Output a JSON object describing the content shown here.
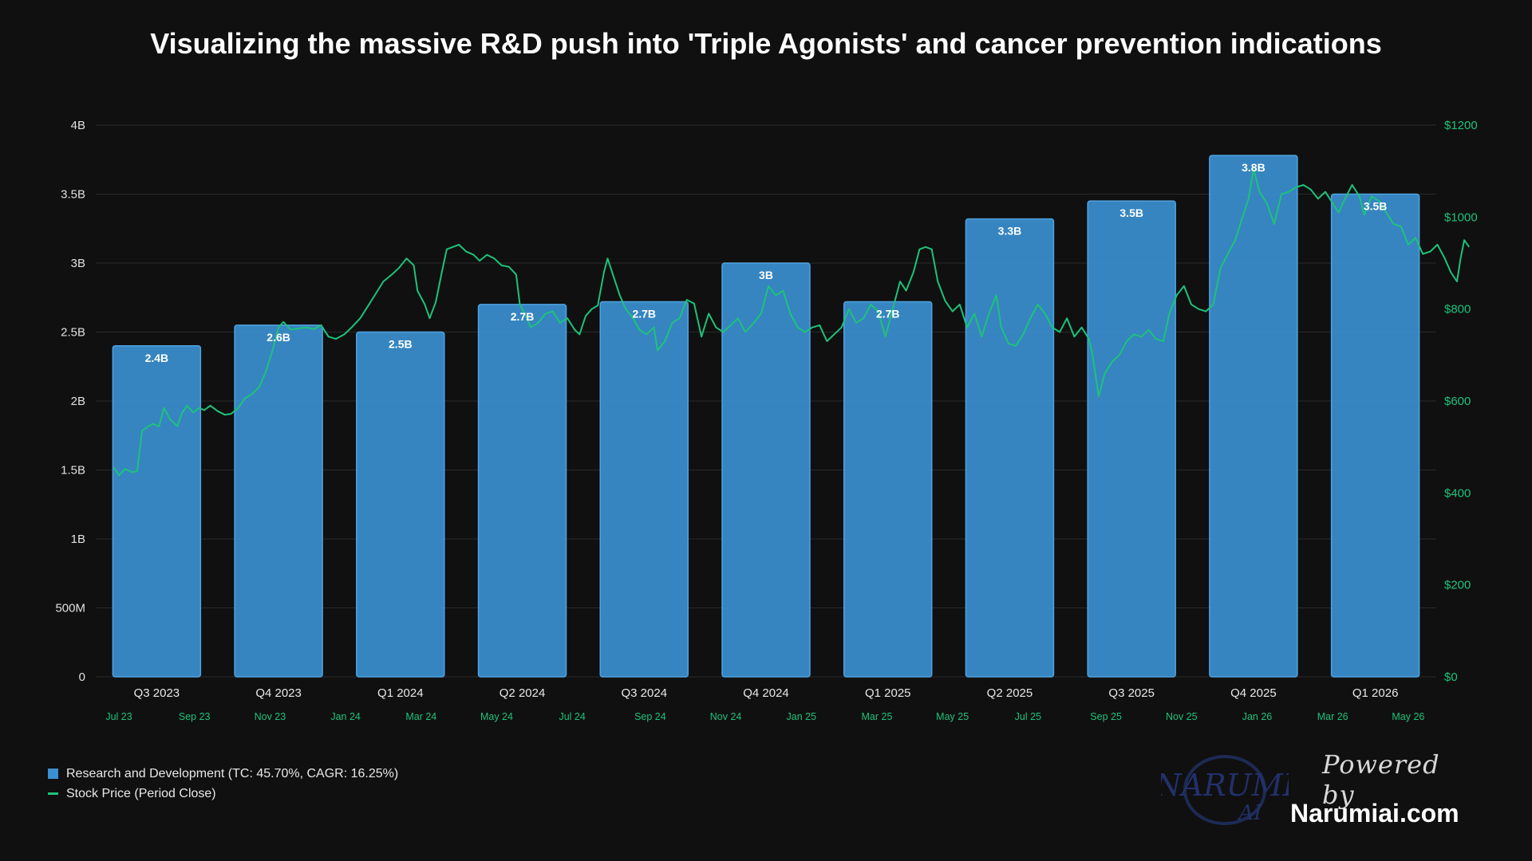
{
  "chart_data": {
    "type": "bar+line",
    "title": "Visualizing the massive R&D push into 'Triple Agonists' and cancer prevention indications",
    "categories": [
      "Q3 2023",
      "Q4 2023",
      "Q1 2024",
      "Q2 2024",
      "Q3 2024",
      "Q4 2024",
      "Q1 2025",
      "Q2 2025",
      "Q3 2025",
      "Q4 2025",
      "Q1 2026"
    ],
    "series": [
      {
        "name": "Research and Development (TC: 45.70%, CAGR: 16.25%)",
        "type": "bar",
        "axis": "left",
        "color": "#3a8fd0",
        "values": [
          2.4,
          2.55,
          2.5,
          2.7,
          2.72,
          3.0,
          2.72,
          3.32,
          3.45,
          3.78,
          3.5
        ],
        "labels": [
          "2.4B",
          "2.6B",
          "2.5B",
          "2.7B",
          "2.7B",
          "3B",
          "2.7B",
          "3.3B",
          "3.5B",
          "3.8B",
          "3.5B"
        ]
      },
      {
        "name": "Stock Price (Period Close)",
        "type": "line",
        "axis": "right",
        "color": "#1ec27a",
        "points": [
          [
            0,
            455
          ],
          [
            0.04,
            438
          ],
          [
            0.09,
            452
          ],
          [
            0.15,
            445
          ],
          [
            0.19,
            448
          ],
          [
            0.23,
            535
          ],
          [
            0.28,
            545
          ],
          [
            0.32,
            550
          ],
          [
            0.37,
            545
          ],
          [
            0.41,
            585
          ],
          [
            0.46,
            560
          ],
          [
            0.52,
            545
          ],
          [
            0.56,
            575
          ],
          [
            0.6,
            590
          ],
          [
            0.65,
            575
          ],
          [
            0.7,
            585
          ],
          [
            0.74,
            580
          ],
          [
            0.79,
            590
          ],
          [
            0.85,
            578
          ],
          [
            0.91,
            570
          ],
          [
            0.96,
            572
          ],
          [
            1.02,
            585
          ],
          [
            1.07,
            605
          ],
          [
            1.13,
            615
          ],
          [
            1.19,
            630
          ],
          [
            1.24,
            660
          ],
          [
            1.3,
            710
          ],
          [
            1.35,
            760
          ],
          [
            1.39,
            772
          ],
          [
            1.45,
            755
          ],
          [
            1.52,
            758
          ],
          [
            1.58,
            760
          ],
          [
            1.64,
            756
          ],
          [
            1.7,
            765
          ],
          [
            1.76,
            740
          ],
          [
            1.82,
            735
          ],
          [
            1.89,
            745
          ],
          [
            1.95,
            760
          ],
          [
            2.02,
            780
          ],
          [
            2.08,
            805
          ],
          [
            2.14,
            830
          ],
          [
            2.21,
            860
          ],
          [
            2.28,
            875
          ],
          [
            2.34,
            890
          ],
          [
            2.4,
            910
          ],
          [
            2.46,
            895
          ],
          [
            2.49,
            840
          ],
          [
            2.55,
            810
          ],
          [
            2.59,
            780
          ],
          [
            2.64,
            815
          ],
          [
            2.69,
            880
          ],
          [
            2.73,
            930
          ],
          [
            2.78,
            935
          ],
          [
            2.83,
            940
          ],
          [
            2.89,
            925
          ],
          [
            2.95,
            918
          ],
          [
            3.0,
            905
          ],
          [
            3.06,
            918
          ],
          [
            3.12,
            910
          ],
          [
            3.18,
            895
          ],
          [
            3.24,
            892
          ],
          [
            3.3,
            875
          ],
          [
            3.33,
            810
          ],
          [
            3.37,
            790
          ],
          [
            3.42,
            760
          ],
          [
            3.48,
            770
          ],
          [
            3.54,
            790
          ],
          [
            3.6,
            795
          ],
          [
            3.66,
            770
          ],
          [
            3.72,
            780
          ],
          [
            3.78,
            755
          ],
          [
            3.82,
            745
          ],
          [
            3.87,
            785
          ],
          [
            3.92,
            800
          ],
          [
            3.97,
            808
          ],
          [
            4.02,
            880
          ],
          [
            4.05,
            910
          ],
          [
            4.1,
            870
          ],
          [
            4.15,
            830
          ],
          [
            4.2,
            800
          ],
          [
            4.26,
            780
          ],
          [
            4.31,
            755
          ],
          [
            4.37,
            745
          ],
          [
            4.43,
            760
          ],
          [
            4.46,
            710
          ],
          [
            4.52,
            730
          ],
          [
            4.58,
            770
          ],
          [
            4.64,
            780
          ],
          [
            4.7,
            820
          ],
          [
            4.76,
            812
          ],
          [
            4.82,
            740
          ],
          [
            4.88,
            790
          ],
          [
            4.94,
            760
          ],
          [
            5.0,
            750
          ],
          [
            5.06,
            765
          ],
          [
            5.12,
            780
          ],
          [
            5.18,
            750
          ],
          [
            5.25,
            770
          ],
          [
            5.31,
            790
          ],
          [
            5.37,
            850
          ],
          [
            5.43,
            830
          ],
          [
            5.49,
            840
          ],
          [
            5.55,
            790
          ],
          [
            5.61,
            760
          ],
          [
            5.67,
            750
          ],
          [
            5.73,
            760
          ],
          [
            5.79,
            765
          ],
          [
            5.85,
            730
          ],
          [
            5.91,
            745
          ],
          [
            5.97,
            760
          ],
          [
            6.03,
            800
          ],
          [
            6.09,
            770
          ],
          [
            6.15,
            780
          ],
          [
            6.21,
            810
          ],
          [
            6.27,
            795
          ],
          [
            6.33,
            740
          ],
          [
            6.38,
            790
          ],
          [
            6.45,
            860
          ],
          [
            6.5,
            840
          ],
          [
            6.56,
            880
          ],
          [
            6.61,
            930
          ],
          [
            6.66,
            935
          ],
          [
            6.71,
            930
          ],
          [
            6.76,
            860
          ],
          [
            6.82,
            818
          ],
          [
            6.88,
            795
          ],
          [
            6.94,
            810
          ],
          [
            7.0,
            760
          ],
          [
            7.06,
            790
          ],
          [
            7.12,
            740
          ],
          [
            7.18,
            790
          ],
          [
            7.24,
            830
          ],
          [
            7.28,
            760
          ],
          [
            7.34,
            725
          ],
          [
            7.4,
            720
          ],
          [
            7.46,
            745
          ],
          [
            7.52,
            780
          ],
          [
            7.58,
            810
          ],
          [
            7.64,
            790
          ],
          [
            7.7,
            760
          ],
          [
            7.76,
            750
          ],
          [
            7.82,
            780
          ],
          [
            7.88,
            740
          ],
          [
            7.94,
            760
          ],
          [
            8.0,
            735
          ],
          [
            8.03,
            700
          ],
          [
            8.08,
            610
          ],
          [
            8.13,
            660
          ],
          [
            8.19,
            685
          ],
          [
            8.25,
            700
          ],
          [
            8.31,
            730
          ],
          [
            8.37,
            745
          ],
          [
            8.43,
            740
          ],
          [
            8.49,
            755
          ],
          [
            8.55,
            735
          ],
          [
            8.61,
            730
          ],
          [
            8.66,
            790
          ],
          [
            8.72,
            830
          ],
          [
            8.78,
            850
          ],
          [
            8.84,
            810
          ],
          [
            8.9,
            800
          ],
          [
            8.96,
            795
          ],
          [
            9.02,
            810
          ],
          [
            9.08,
            890
          ],
          [
            9.14,
            920
          ],
          [
            9.2,
            950
          ],
          [
            9.26,
            1000
          ],
          [
            9.31,
            1040
          ],
          [
            9.35,
            1105
          ],
          [
            9.4,
            1055
          ],
          [
            9.46,
            1030
          ],
          [
            9.52,
            985
          ],
          [
            9.58,
            1050
          ],
          [
            9.64,
            1055
          ],
          [
            9.7,
            1065
          ],
          [
            9.76,
            1070
          ],
          [
            9.82,
            1060
          ],
          [
            9.88,
            1040
          ],
          [
            9.94,
            1055
          ],
          [
            10.0,
            1030
          ],
          [
            10.05,
            1010
          ],
          [
            10.1,
            1040
          ],
          [
            10.16,
            1070
          ],
          [
            10.22,
            1045
          ],
          [
            10.26,
            1005
          ],
          [
            10.32,
            1045
          ],
          [
            10.38,
            1035
          ],
          [
            10.44,
            1010
          ],
          [
            10.5,
            985
          ],
          [
            10.56,
            980
          ],
          [
            10.62,
            940
          ],
          [
            10.68,
            955
          ],
          [
            10.74,
            920
          ],
          [
            10.8,
            925
          ],
          [
            10.86,
            940
          ],
          [
            10.92,
            910
          ],
          [
            10.97,
            880
          ],
          [
            11.02,
            860
          ],
          [
            11.05,
            910
          ],
          [
            11.08,
            950
          ],
          [
            11.12,
            935
          ]
        ]
      }
    ],
    "y_left": {
      "min": 0,
      "max": 4,
      "ticks": [
        0,
        0.5,
        1,
        1.5,
        2,
        2.5,
        3,
        3.5,
        4
      ],
      "tick_labels": [
        "0",
        "500M",
        "1B",
        "1.5B",
        "2B",
        "2.5B",
        "3B",
        "3.5B",
        "4B"
      ]
    },
    "y_right": {
      "min": 0,
      "max": 1200,
      "ticks": [
        0,
        200,
        400,
        600,
        800,
        1000,
        1200
      ],
      "tick_labels": [
        "$0",
        "$200",
        "$400",
        "$600",
        "$800",
        "$1000",
        "$1200"
      ]
    },
    "date_ticks": [
      {
        "pos": -0.31,
        "label": "Jul 23"
      },
      {
        "pos": 0.31,
        "label": "Sep 23"
      },
      {
        "pos": 0.93,
        "label": "Nov 23"
      },
      {
        "pos": 1.55,
        "label": "Jan 24"
      },
      {
        "pos": 2.17,
        "label": "Mar 24"
      },
      {
        "pos": 2.79,
        "label": "May 24"
      },
      {
        "pos": 3.41,
        "label": "Jul 24"
      },
      {
        "pos": 4.05,
        "label": "Sep 24"
      },
      {
        "pos": 4.67,
        "label": "Nov 24"
      },
      {
        "pos": 5.29,
        "label": "Jan 25"
      },
      {
        "pos": 5.91,
        "label": "Mar 25"
      },
      {
        "pos": 6.53,
        "label": "May 25"
      },
      {
        "pos": 7.15,
        "label": "Jul 25"
      },
      {
        "pos": 7.79,
        "label": "Sep 25"
      },
      {
        "pos": 8.41,
        "label": "Nov 25"
      },
      {
        "pos": 9.03,
        "label": "Jan 26"
      },
      {
        "pos": 9.65,
        "label": "Mar 26"
      },
      {
        "pos": 10.27,
        "label": "May 26"
      }
    ],
    "grid": true,
    "legend_position": "bottom-left"
  },
  "colors": {
    "background": "#101010",
    "bar": "#3a8fd0",
    "bar_edge": "#4fa3e0",
    "line": "#1ec27a",
    "grid": "#2a2a2a",
    "axis_text_left": "#e0e0e0",
    "axis_text_right": "#1ec27a"
  },
  "legend": {
    "rd_label": "Research and Development (TC: 45.70%, CAGR: 16.25%)",
    "price_label": "Stock Price (Period Close)"
  },
  "branding": {
    "logo_main": "NARUMI",
    "logo_sub": "AI",
    "powered_by": "Powered by",
    "site": "Narumiai.com"
  }
}
